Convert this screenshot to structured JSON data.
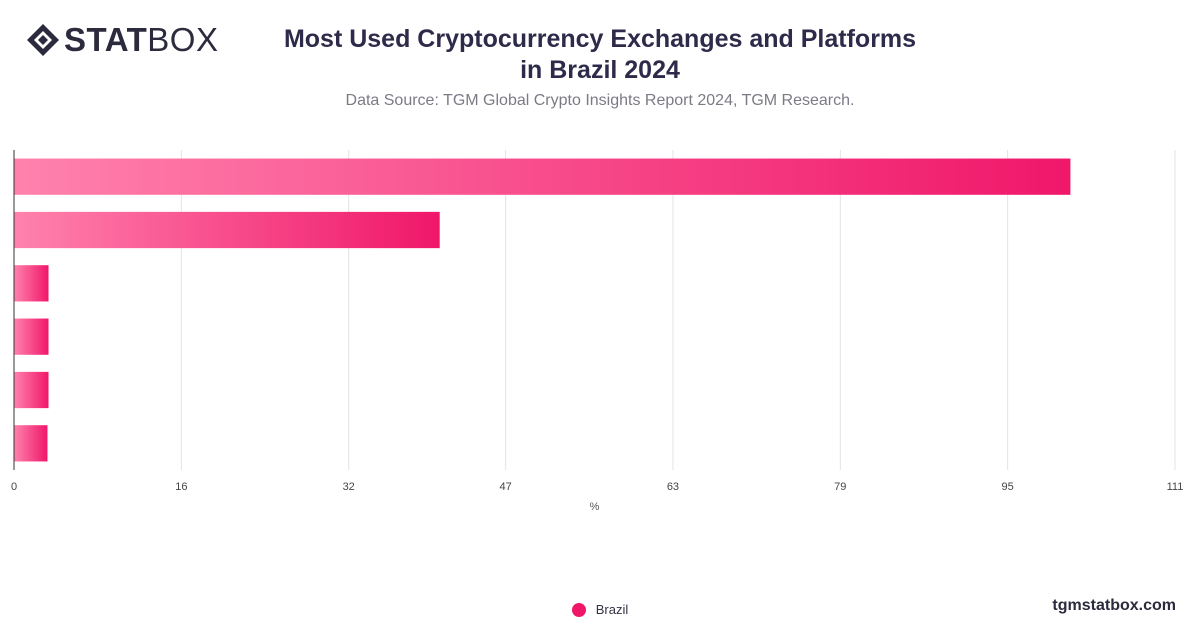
{
  "brand": {
    "logo_bold": "STAT",
    "logo_light": "BOX",
    "footer_url": "tgmstatbox.com"
  },
  "header": {
    "title_line1": "Most Used Cryptocurrency Exchanges and Platforms",
    "title_line2": "in Brazil 2024",
    "subtitle": "Data Source: TGM Global Crypto Insights Report 2024, TGM Research."
  },
  "colors": {
    "bar_start": "#ff82ad",
    "bar_end": "#f0176a",
    "grid": "#e3e3e3",
    "axis": "#333333",
    "legend": "#f0176a"
  },
  "chart_data": {
    "type": "bar",
    "orientation": "horizontal",
    "categories": [
      "",
      "",
      "",
      "",
      "",
      ""
    ],
    "series": [
      {
        "name": "Brazil",
        "values": [
          101,
          40.7,
          3.3,
          3.3,
          3.3,
          3.2
        ]
      }
    ],
    "xlabel": "%",
    "xlim": [
      0,
      111
    ],
    "xticks": [
      "0",
      "16",
      "32",
      "47",
      "63",
      "79",
      "95",
      "111"
    ],
    "xtick_values": [
      0,
      16,
      32,
      47,
      63,
      79,
      95,
      111
    ],
    "grid": true,
    "legend_position": "bottom"
  }
}
